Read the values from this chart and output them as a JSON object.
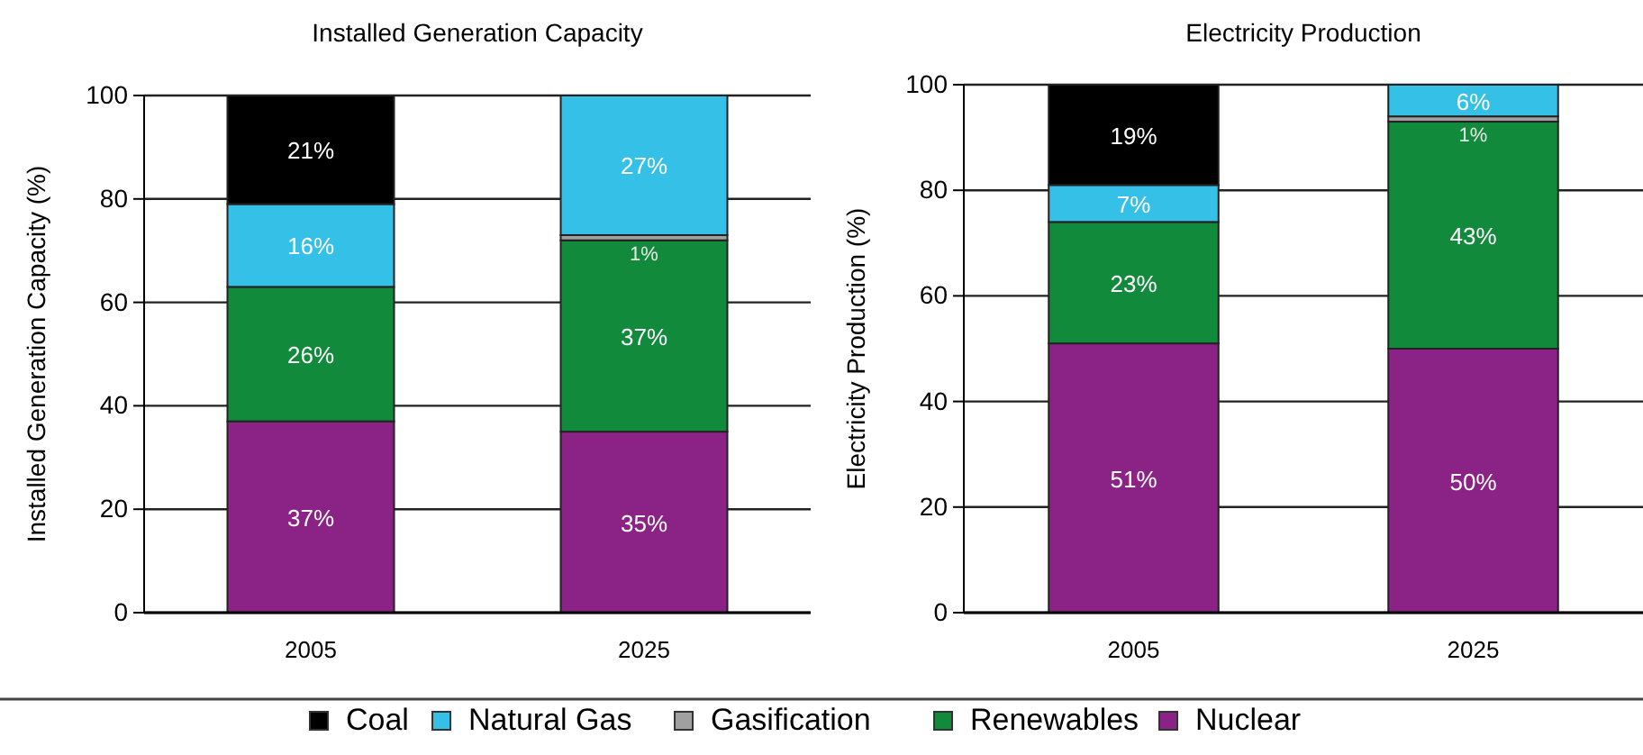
{
  "chart_data": [
    {
      "type": "bar",
      "title": "Installed Generation Capacity",
      "ylabel": "Installed Generation Capacity (%)",
      "categories": [
        "2005",
        "2025"
      ],
      "stacked": true,
      "ylim": [
        0,
        100
      ],
      "yticks": [
        0,
        20,
        40,
        60,
        80,
        100
      ],
      "grid": "y",
      "legend": "bottom",
      "series": [
        {
          "name": "Nuclear",
          "color": "#8b2387",
          "values": [
            37,
            35
          ],
          "value_labels": [
            "37%",
            "35%"
          ]
        },
        {
          "name": "Renewables",
          "color": "#128a3c",
          "values": [
            26,
            37
          ],
          "value_labels": [
            "26%",
            "37%"
          ]
        },
        {
          "name": "Gasification",
          "color": "#a0a0a0",
          "values": [
            0,
            1
          ],
          "value_labels": [
            null,
            "1%"
          ]
        },
        {
          "name": "Natural Gas",
          "color": "#35c0e8",
          "values": [
            16,
            27
          ],
          "value_labels": [
            "16%",
            "27%"
          ]
        },
        {
          "name": "Coal",
          "color": "#000000",
          "values": [
            21,
            0
          ],
          "value_labels": [
            "21%",
            null
          ]
        }
      ]
    },
    {
      "type": "bar",
      "title": "Electricity Production",
      "ylabel": "Electricity Production (%)",
      "categories": [
        "2005",
        "2025"
      ],
      "stacked": true,
      "ylim": [
        0,
        100
      ],
      "yticks": [
        0,
        20,
        40,
        60,
        80,
        100
      ],
      "grid": "y",
      "series": [
        {
          "color": "#8b2387",
          "values": [
            51,
            50
          ],
          "value_labels": [
            "51%",
            "50%"
          ]
        },
        {
          "color": "#128a3c",
          "values": [
            23,
            43
          ],
          "value_labels": [
            "23%",
            "43%"
          ]
        },
        {
          "color": "#a0a0a0",
          "values": [
            0,
            1
          ],
          "value_labels": [
            null,
            "1%"
          ]
        },
        {
          "color": "#35c0e8",
          "values": [
            7,
            6
          ],
          "value_labels": [
            "7%",
            "6%"
          ]
        },
        {
          "color": "#000000",
          "values": [
            19,
            0
          ],
          "value_labels": [
            "19%",
            null
          ]
        }
      ]
    }
  ]
}
